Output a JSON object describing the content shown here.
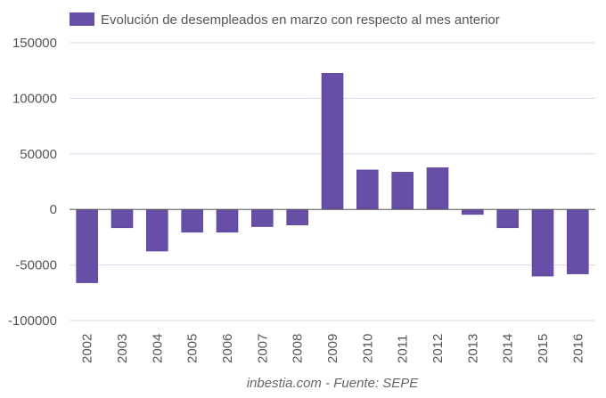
{
  "chart_data": {
    "type": "bar",
    "title": "",
    "legend": [
      {
        "label": "Evolución de desempleados en marzo con respecto al mes anterior",
        "color": "#674ea7"
      }
    ],
    "legend_position": "top",
    "categories": [
      "2002",
      "2003",
      "2004",
      "2005",
      "2006",
      "2007",
      "2008",
      "2009",
      "2010",
      "2011",
      "2012",
      "2013",
      "2014",
      "2015",
      "2016"
    ],
    "series": [
      {
        "name": "Evolución de desempleados en marzo con respecto al mes anterior",
        "color": "#674ea7",
        "values": [
          -66000,
          -16500,
          -37500,
          -20500,
          -20500,
          -15500,
          -14000,
          122500,
          35500,
          33500,
          37500,
          -4500,
          -16500,
          -60000,
          -58000
        ]
      }
    ],
    "xlabel": "inbestia.com - Fuente: SEPE",
    "ylabel": "",
    "ylim": [
      -100000,
      150000
    ],
    "yticks": [
      150000,
      100000,
      50000,
      0,
      -50000,
      -100000
    ],
    "ytick_labels": [
      "150000",
      "100000",
      "50000",
      "0",
      "-50000",
      "-100000"
    ],
    "grid": true,
    "colors": {
      "bar": "#674ea7",
      "grid": "#dcd8ee",
      "zero_line": "#555555",
      "text": "#555555"
    }
  }
}
